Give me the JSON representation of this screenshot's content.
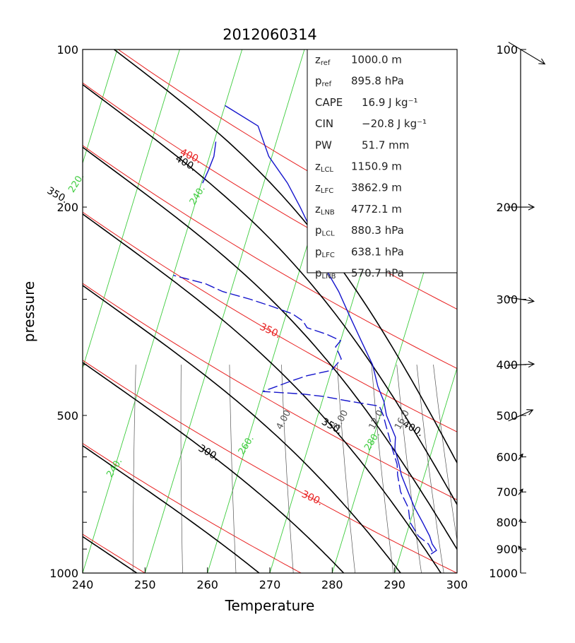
{
  "chart_data": {
    "type": "skew-t",
    "title": "2012060314",
    "xlabel": "Temperature",
    "ylabel": "pressure",
    "xlim": [
      240,
      300
    ],
    "ylim": [
      1000,
      100
    ],
    "x_ticks": [
      "240",
      "250",
      "260",
      "270",
      "280",
      "290",
      "300"
    ],
    "y_ticks": [
      "100",
      "200",
      "500",
      "1000"
    ],
    "wind_ticks": [
      "100",
      "200",
      "300",
      "400",
      "500",
      "600",
      "700",
      "800",
      "900",
      "1000"
    ],
    "stats": [
      {
        "name": "z",
        "sub": "ref",
        "value": "1000.0 m"
      },
      {
        "name": "p",
        "sub": "ref",
        "value": "895.8 hPa"
      },
      {
        "name": "CAPE",
        "sub": "",
        "value": "16.9 J kg⁻¹"
      },
      {
        "name": "CIN",
        "sub": "",
        "value": "−20.8 J kg⁻¹"
      },
      {
        "name": "PW",
        "sub": "",
        "value": "51.7 mm"
      },
      {
        "name": "z",
        "sub": "LCL",
        "value": "1150.9 m"
      },
      {
        "name": "z",
        "sub": "LFC",
        "value": "3862.9 m"
      },
      {
        "name": "z",
        "sub": "LNB",
        "value": "4772.1 m"
      },
      {
        "name": "p",
        "sub": "LCL",
        "value": "880.3 hPa"
      },
      {
        "name": "p",
        "sub": "LFC",
        "value": "638.1 hPa"
      },
      {
        "name": "p",
        "sub": "LNB",
        "value": "570.7 hPa"
      }
    ],
    "isotherms": [
      200,
      210,
      220,
      230,
      240,
      250,
      260,
      270,
      280,
      290,
      300
    ],
    "isotherm_labels": [
      {
        "text": "220.",
        "t": 220,
        "p": 180
      },
      {
        "text": "240.",
        "t": 240,
        "p": 190
      },
      {
        "text": "240.",
        "t": 240,
        "p": 630
      },
      {
        "text": "260.",
        "t": 260,
        "p": 570
      },
      {
        "text": "280.",
        "t": 280,
        "p": 560
      }
    ],
    "dry_adiabats": [
      250,
      275,
      300,
      325,
      350,
      375,
      400,
      425
    ],
    "dry_adiabat_labels": [
      {
        "text": "300.",
        "theta": 300,
        "p": 720
      },
      {
        "text": "350.",
        "theta": 350,
        "p": 345
      },
      {
        "text": "400.",
        "theta": 400,
        "p": 160
      }
    ],
    "moist_adiabats": [
      250,
      275,
      300,
      325,
      350,
      375,
      400,
      425
    ],
    "moist_adiabat_labels": [
      {
        "text": "300.",
        "theta": 300,
        "p": 590
      },
      {
        "text": "350.",
        "theta": 350,
        "p": 190
      },
      {
        "text": "350.",
        "theta": 350,
        "p": 525
      },
      {
        "text": "400.",
        "theta": 400,
        "p": 165
      },
      {
        "text": "400.",
        "theta": 400,
        "p": 530
      }
    ],
    "mixing_ratios": [
      0.5,
      1,
      2,
      4,
      8,
      12,
      16,
      20,
      24
    ],
    "mixing_ratio_labels": [
      {
        "text": "4.00",
        "w": 4,
        "p": 510
      },
      {
        "text": "8.00",
        "w": 8,
        "p": 510
      },
      {
        "text": "12.0",
        "w": 12,
        "p": 510
      },
      {
        "text": "16.0",
        "w": 16,
        "p": 510
      }
    ],
    "temperature_profile": {
      "p": [
        920,
        905,
        880,
        850,
        800,
        750,
        700,
        650,
        620,
        580,
        550,
        500,
        470,
        440,
        400,
        360,
        320,
        290,
        260,
        230,
        200,
        180,
        160,
        140,
        128
      ],
      "t": [
        294.9,
        295.6,
        294.6,
        293.8,
        292.0,
        290.0,
        288.2,
        286.3,
        285.4,
        284.0,
        283.5,
        281.0,
        279.9,
        278.2,
        276.3,
        273.3,
        270.0,
        267.3,
        263.8,
        261.0,
        257.0,
        253.8,
        249.5,
        246.3,
        240.0
      ]
    },
    "dewpoint_profile": {
      "p": [
        910,
        880,
        850,
        800,
        750,
        700,
        650,
        620,
        580,
        550,
        520,
        500,
        480,
        470,
        460,
        455,
        450,
        440,
        430,
        420,
        410,
        400,
        390,
        380,
        370,
        360,
        350,
        340,
        330,
        320,
        310,
        300,
        290,
        280,
        270
      ],
      "t": [
        295.0,
        294.0,
        292.0,
        290.0,
        289.0,
        287.0,
        285.7,
        285.1,
        283.6,
        282.5,
        281.3,
        280.5,
        279.4,
        274.5,
        270.0,
        266.5,
        260.0,
        262.0,
        264.0,
        266.3,
        270.0,
        270.5,
        271.0,
        270.3,
        269.5,
        270.0,
        267.5,
        264.0,
        263.0,
        261.0,
        257.5,
        253.5,
        248.7,
        245.5,
        240.0
      ]
    },
    "edge_profile": {
      "p": [
        150,
        160,
        170,
        180
      ],
      "t": [
        240.3,
        240.7,
        240.5,
        240.2
      ]
    },
    "wind_barbs": [
      {
        "p": 100,
        "u": 1.0,
        "v": -0.6
      },
      {
        "p": 200,
        "u": 1.0,
        "v": 0.0
      },
      {
        "p": 300,
        "u": 1.0,
        "v": -0.15
      },
      {
        "p": 400,
        "u": 1.0,
        "v": 0.05
      },
      {
        "p": 500,
        "u": 1.0,
        "v": 0.45
      },
      {
        "p": 600,
        "u": 0.6,
        "v": 0.8
      },
      {
        "p": 700,
        "u": 0.6,
        "v": 0.8
      },
      {
        "p": 800,
        "u": 0.0,
        "v": 1.0
      },
      {
        "p": 900,
        "u": -0.6,
        "v": 0.8
      }
    ],
    "colors": {
      "isotherm": "#3dcc3d",
      "dry_adiabat": "#e82020",
      "moist_adiabat": "#000000",
      "mixing_ratio": "#555555",
      "profile": "#1414cc",
      "axis": "#000000"
    }
  }
}
